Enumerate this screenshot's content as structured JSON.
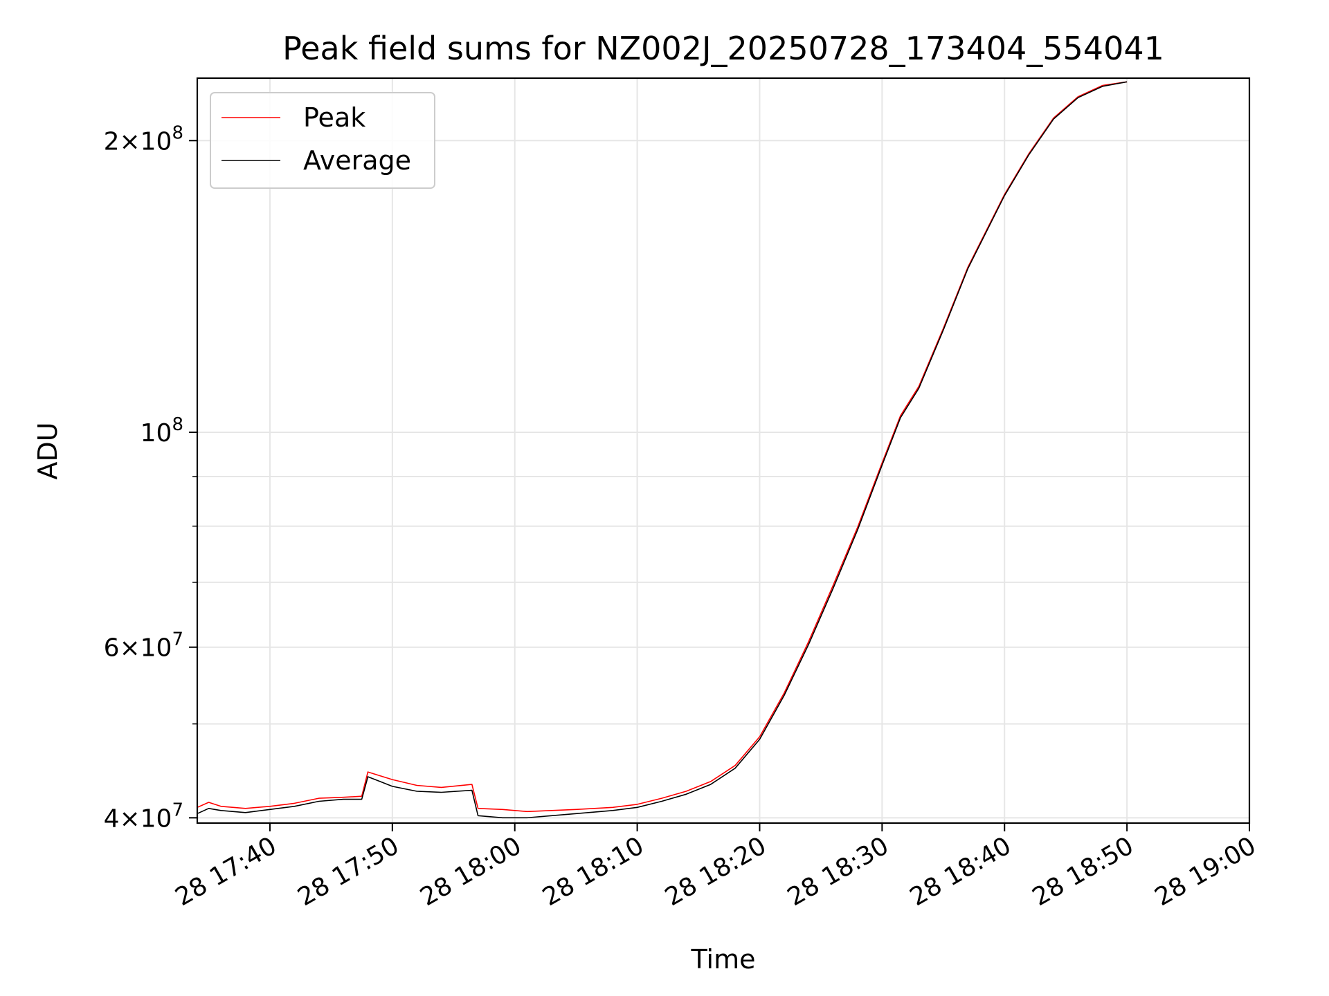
{
  "chart_data": {
    "type": "line",
    "title": "Peak field sums for NZ002J_20250728_173404_554041",
    "xlabel": "Time",
    "ylabel": "ADU",
    "x_is_time": true,
    "xlim": [
      "2025-07-28T17:34:04",
      "2025-07-28T19:00:00"
    ],
    "ylim": [
      39500000,
      232000000
    ],
    "yscale": "log",
    "grid": true,
    "legend_position": "top-left",
    "x_ticks": [
      {
        "value": "2025-07-28T17:40:00",
        "label": "28 17:40"
      },
      {
        "value": "2025-07-28T17:50:00",
        "label": "28 17:50"
      },
      {
        "value": "2025-07-28T18:00:00",
        "label": "28 18:00"
      },
      {
        "value": "2025-07-28T18:10:00",
        "label": "28 18:10"
      },
      {
        "value": "2025-07-28T18:20:00",
        "label": "28 18:20"
      },
      {
        "value": "2025-07-28T18:30:00",
        "label": "28 18:30"
      },
      {
        "value": "2025-07-28T18:40:00",
        "label": "28 18:40"
      },
      {
        "value": "2025-07-28T18:50:00",
        "label": "28 18:50"
      },
      {
        "value": "2025-07-28T19:00:00",
        "label": "28 19:00"
      }
    ],
    "y_ticks": [
      {
        "value": 40000000,
        "mantissa": "4",
        "exponent": "7"
      },
      {
        "value": 60000000,
        "mantissa": "6",
        "exponent": "7"
      },
      {
        "value": 100000000,
        "mantissa": "",
        "exponent": "8"
      },
      {
        "value": 200000000,
        "mantissa": "2",
        "exponent": "8"
      }
    ],
    "y_minor_ticks": [
      50000000,
      70000000,
      80000000,
      90000000
    ],
    "series": [
      {
        "name": "Peak",
        "color": "#ff0000",
        "x": [
          "2025-07-28T17:34:04",
          "2025-07-28T17:35:00",
          "2025-07-28T17:36:00",
          "2025-07-28T17:38:00",
          "2025-07-28T17:40:00",
          "2025-07-28T17:42:00",
          "2025-07-28T17:44:00",
          "2025-07-28T17:46:00",
          "2025-07-28T17:47:30",
          "2025-07-28T17:48:00",
          "2025-07-28T17:49:00",
          "2025-07-28T17:50:00",
          "2025-07-28T17:52:00",
          "2025-07-28T17:54:00",
          "2025-07-28T17:56:30",
          "2025-07-28T17:57:00",
          "2025-07-28T17:59:00",
          "2025-07-28T18:01:00",
          "2025-07-28T18:03:00",
          "2025-07-28T18:05:00",
          "2025-07-28T18:08:00",
          "2025-07-28T18:10:00",
          "2025-07-28T18:12:00",
          "2025-07-28T18:14:00",
          "2025-07-28T18:16:00",
          "2025-07-28T18:18:00",
          "2025-07-28T18:20:00",
          "2025-07-28T18:22:00",
          "2025-07-28T18:24:00",
          "2025-07-28T18:26:00",
          "2025-07-28T18:28:00",
          "2025-07-28T18:30:00",
          "2025-07-28T18:31:30",
          "2025-07-28T18:33:00",
          "2025-07-28T18:35:00",
          "2025-07-28T18:37:00",
          "2025-07-28T18:40:00",
          "2025-07-28T18:42:00",
          "2025-07-28T18:44:00",
          "2025-07-28T18:46:00",
          "2025-07-28T18:48:00",
          "2025-07-28T18:50:00"
        ],
        "values": [
          41000000,
          41500000,
          41100000,
          40900000,
          41100000,
          41400000,
          41900000,
          42000000,
          42100000,
          44600000,
          44200000,
          43800000,
          43200000,
          43000000,
          43300000,
          40900000,
          40800000,
          40600000,
          40700000,
          40800000,
          41000000,
          41300000,
          41900000,
          42600000,
          43600000,
          45300000,
          48500000,
          53800000,
          60800000,
          69500000,
          79800000,
          93000000,
          104000000,
          111500000,
          128000000,
          148000000,
          176000000,
          194000000,
          211000000,
          222000000,
          228000000,
          230000000
        ]
      },
      {
        "name": "Average",
        "color": "#000000",
        "x": [
          "2025-07-28T17:34:04",
          "2025-07-28T17:35:00",
          "2025-07-28T17:36:00",
          "2025-07-28T17:38:00",
          "2025-07-28T17:40:00",
          "2025-07-28T17:42:00",
          "2025-07-28T17:44:00",
          "2025-07-28T17:46:00",
          "2025-07-28T17:47:30",
          "2025-07-28T17:48:00",
          "2025-07-28T17:49:00",
          "2025-07-28T17:50:00",
          "2025-07-28T17:52:00",
          "2025-07-28T17:54:00",
          "2025-07-28T17:56:30",
          "2025-07-28T17:57:00",
          "2025-07-28T17:59:00",
          "2025-07-28T18:01:00",
          "2025-07-28T18:03:00",
          "2025-07-28T18:05:00",
          "2025-07-28T18:08:00",
          "2025-07-28T18:10:00",
          "2025-07-28T18:12:00",
          "2025-07-28T18:14:00",
          "2025-07-28T18:16:00",
          "2025-07-28T18:18:00",
          "2025-07-28T18:20:00",
          "2025-07-28T18:22:00",
          "2025-07-28T18:24:00",
          "2025-07-28T18:26:00",
          "2025-07-28T18:28:00",
          "2025-07-28T18:30:00",
          "2025-07-28T18:31:30",
          "2025-07-28T18:33:00",
          "2025-07-28T18:35:00",
          "2025-07-28T18:37:00",
          "2025-07-28T18:40:00",
          "2025-07-28T18:42:00",
          "2025-07-28T18:44:00",
          "2025-07-28T18:46:00",
          "2025-07-28T18:48:00",
          "2025-07-28T18:50:00"
        ],
        "values": [
          40400000,
          40900000,
          40700000,
          40500000,
          40800000,
          41100000,
          41600000,
          41800000,
          41800000,
          44100000,
          43600000,
          43100000,
          42600000,
          42500000,
          42700000,
          40200000,
          40000000,
          40000000,
          40200000,
          40400000,
          40700000,
          41000000,
          41600000,
          42300000,
          43300000,
          45000000,
          48200000,
          53500000,
          60400000,
          69000000,
          79300000,
          92500000,
          103500000,
          111000000,
          127500000,
          147500000,
          175500000,
          193500000,
          210500000,
          221500000,
          227500000,
          230000000
        ]
      }
    ]
  }
}
